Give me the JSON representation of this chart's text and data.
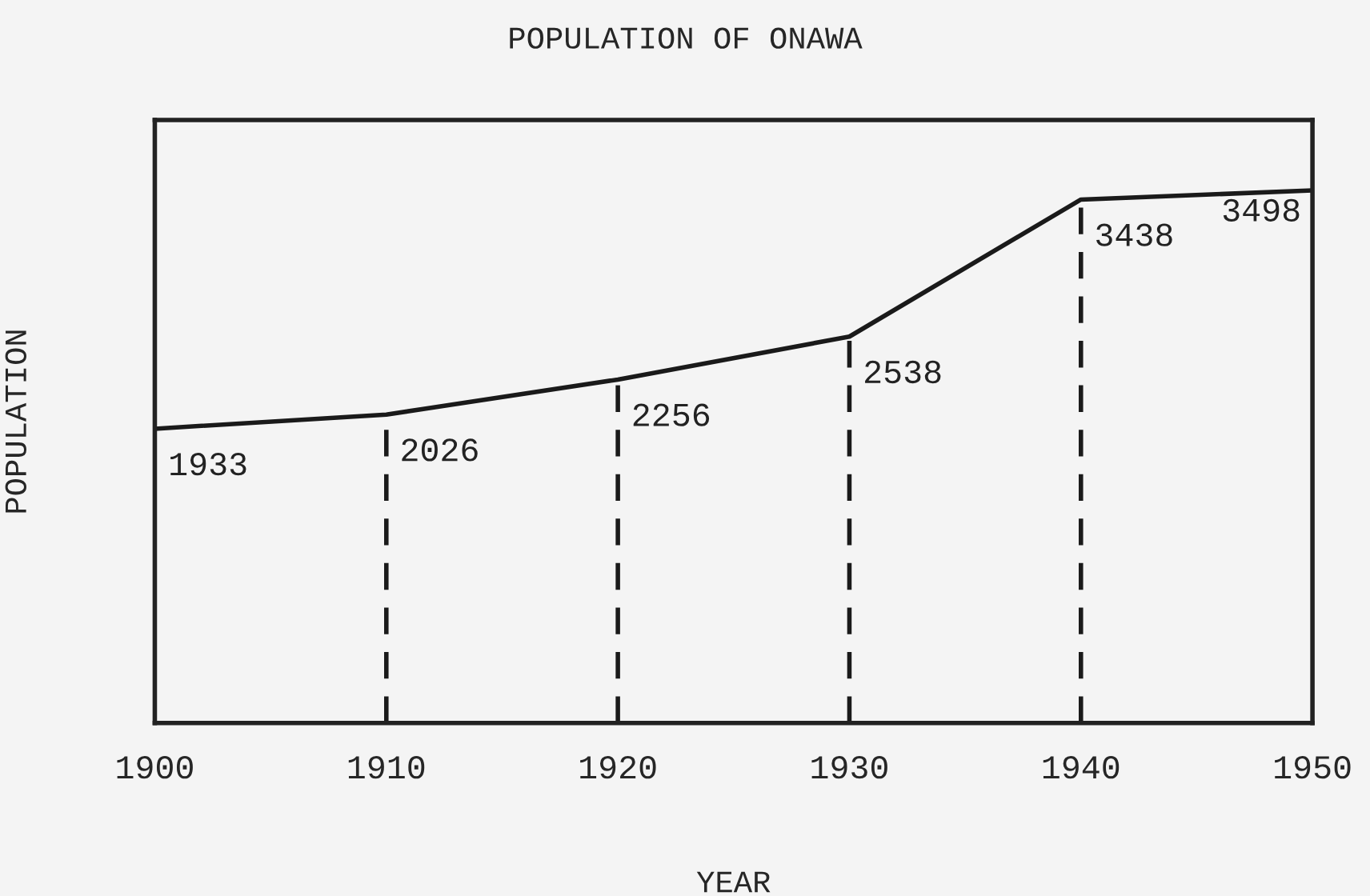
{
  "chart_data": {
    "type": "line",
    "title": "POPULATION OF ONAWA",
    "xlabel": "YEAR",
    "ylabel": "POPULATION",
    "x": [
      1900,
      1910,
      1920,
      1930,
      1940,
      1950
    ],
    "series": [
      {
        "color": "#1a1a1a",
        "values": [
          1933,
          2026,
          2256,
          2538,
          3438,
          3498
        ]
      }
    ],
    "xlim": [
      1900,
      1950
    ],
    "xticks": [
      1900,
      1910,
      1920,
      1930,
      1940,
      1950
    ],
    "ylim": [
      0,
      3960
    ],
    "tick_labels": "x",
    "data_labels": true,
    "grid": "x",
    "legend": false,
    "marker": "none",
    "line_style": "solid"
  }
}
